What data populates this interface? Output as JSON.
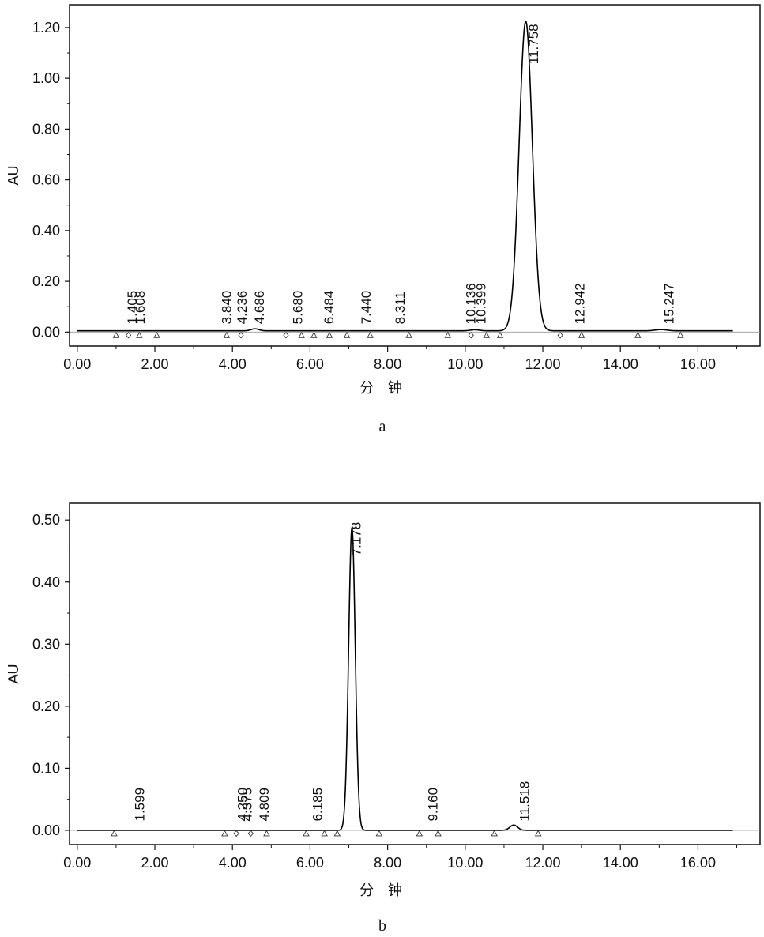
{
  "chart_data": [
    {
      "type": "line",
      "panel_label": "a",
      "ylabel": "AU",
      "xlabel": "分 钟",
      "xlim": [
        -0.2,
        17.6
      ],
      "ylim": [
        -0.055,
        1.29
      ],
      "xticks": [
        "0.00",
        "2.00",
        "4.00",
        "6.00",
        "8.00",
        "10.00",
        "12.00",
        "14.00",
        "16.00"
      ],
      "xtick_values": [
        0,
        2,
        4,
        6,
        8,
        10,
        12,
        14,
        16
      ],
      "yticks": [
        "0.00",
        "0.20",
        "0.40",
        "0.60",
        "0.80",
        "1.00",
        "1.20"
      ],
      "ytick_values": [
        0,
        0.2,
        0.4,
        0.6,
        0.8,
        1.0,
        1.2
      ],
      "baseline": 0.005,
      "series": [
        {
          "peaks": [
            {
              "rt": 4.58,
              "height": 0.008,
              "width": 0.1
            },
            {
              "rt": 10.25,
              "height": 0.004,
              "width": 0.12
            },
            {
              "rt": 11.56,
              "height": 1.22,
              "width": 0.17
            },
            {
              "rt": 15.05,
              "height": 0.005,
              "width": 0.15
            }
          ]
        }
      ],
      "peak_labels": [
        {
          "text": "1.405",
          "x": 1.405,
          "y": 0.025
        },
        {
          "text": "1.608",
          "x": 1.608,
          "y": 0.025
        },
        {
          "text": "3.840",
          "x": 3.84,
          "y": 0.025
        },
        {
          "text": "4.236",
          "x": 4.236,
          "y": 0.025
        },
        {
          "text": "4.686",
          "x": 4.686,
          "y": 0.025
        },
        {
          "text": "5.680",
          "x": 5.68,
          "y": 0.025
        },
        {
          "text": "6.484",
          "x": 6.484,
          "y": 0.025
        },
        {
          "text": "7.440",
          "x": 7.44,
          "y": 0.025
        },
        {
          "text": "8.311",
          "x": 8.311,
          "y": 0.025
        },
        {
          "text": "10.136",
          "x": 10.136,
          "y": 0.025
        },
        {
          "text": "10.399",
          "x": 10.399,
          "y": 0.025
        },
        {
          "text": "11.758",
          "x": 11.758,
          "y": 1.05
        },
        {
          "text": "12.942",
          "x": 12.942,
          "y": 0.025
        },
        {
          "text": "15.247",
          "x": 15.247,
          "y": 0.025
        }
      ],
      "markers": [
        {
          "x": 1.0,
          "shape": "triangle"
        },
        {
          "x": 1.32,
          "shape": "diamond"
        },
        {
          "x": 1.6,
          "shape": "triangle"
        },
        {
          "x": 2.05,
          "shape": "triangle"
        },
        {
          "x": 3.85,
          "shape": "triangle"
        },
        {
          "x": 4.22,
          "shape": "diamond"
        },
        {
          "x": 5.38,
          "shape": "diamond"
        },
        {
          "x": 5.78,
          "shape": "triangle"
        },
        {
          "x": 6.1,
          "shape": "triangle"
        },
        {
          "x": 6.5,
          "shape": "triangle"
        },
        {
          "x": 6.95,
          "shape": "triangle"
        },
        {
          "x": 7.55,
          "shape": "triangle"
        },
        {
          "x": 8.55,
          "shape": "triangle"
        },
        {
          "x": 9.55,
          "shape": "triangle"
        },
        {
          "x": 10.15,
          "shape": "diamond"
        },
        {
          "x": 10.55,
          "shape": "triangle"
        },
        {
          "x": 10.9,
          "shape": "triangle"
        },
        {
          "x": 12.45,
          "shape": "diamond"
        },
        {
          "x": 13.0,
          "shape": "triangle"
        },
        {
          "x": 14.45,
          "shape": "triangle"
        },
        {
          "x": 15.55,
          "shape": "triangle"
        }
      ]
    },
    {
      "type": "line",
      "panel_label": "b",
      "ylabel": "AU",
      "xlabel": "分 钟",
      "xlim": [
        -0.2,
        17.6
      ],
      "ylim": [
        -0.023,
        0.527
      ],
      "xticks": [
        "0.00",
        "2.00",
        "4.00",
        "6.00",
        "8.00",
        "10.00",
        "12.00",
        "14.00",
        "16.00"
      ],
      "xtick_values": [
        0,
        2,
        4,
        6,
        8,
        10,
        12,
        14,
        16
      ],
      "yticks": [
        "0.00",
        "0.10",
        "0.20",
        "0.30",
        "0.40",
        "0.50"
      ],
      "ytick_values": [
        0,
        0.1,
        0.2,
        0.3,
        0.4,
        0.5
      ],
      "baseline": 0.0,
      "series": [
        {
          "peaks": [
            {
              "rt": 7.08,
              "height": 0.488,
              "width": 0.085
            },
            {
              "rt": 11.25,
              "height": 0.0085,
              "width": 0.1
            }
          ]
        }
      ],
      "peak_labels": [
        {
          "text": "1.599",
          "x": 1.599,
          "y": 0.012
        },
        {
          "text": "4.250",
          "x": 4.25,
          "y": 0.012
        },
        {
          "text": "4.375",
          "x": 4.375,
          "y": 0.012
        },
        {
          "text": "4.809",
          "x": 4.809,
          "y": 0.012
        },
        {
          "text": "6.185",
          "x": 6.185,
          "y": 0.012
        },
        {
          "text": "7.178",
          "x": 7.178,
          "y": 0.44
        },
        {
          "text": "9.160",
          "x": 9.16,
          "y": 0.012
        },
        {
          "text": "11.518",
          "x": 11.518,
          "y": 0.012
        }
      ],
      "markers": [
        {
          "x": 0.95,
          "shape": "triangle"
        },
        {
          "x": 3.8,
          "shape": "triangle"
        },
        {
          "x": 4.1,
          "shape": "diamond"
        },
        {
          "x": 4.47,
          "shape": "diamond"
        },
        {
          "x": 4.88,
          "shape": "triangle"
        },
        {
          "x": 5.9,
          "shape": "triangle"
        },
        {
          "x": 6.37,
          "shape": "triangle"
        },
        {
          "x": 6.7,
          "shape": "triangle"
        },
        {
          "x": 7.78,
          "shape": "triangle"
        },
        {
          "x": 8.82,
          "shape": "triangle"
        },
        {
          "x": 9.3,
          "shape": "triangle"
        },
        {
          "x": 10.75,
          "shape": "triangle"
        },
        {
          "x": 11.88,
          "shape": "triangle"
        }
      ]
    }
  ]
}
